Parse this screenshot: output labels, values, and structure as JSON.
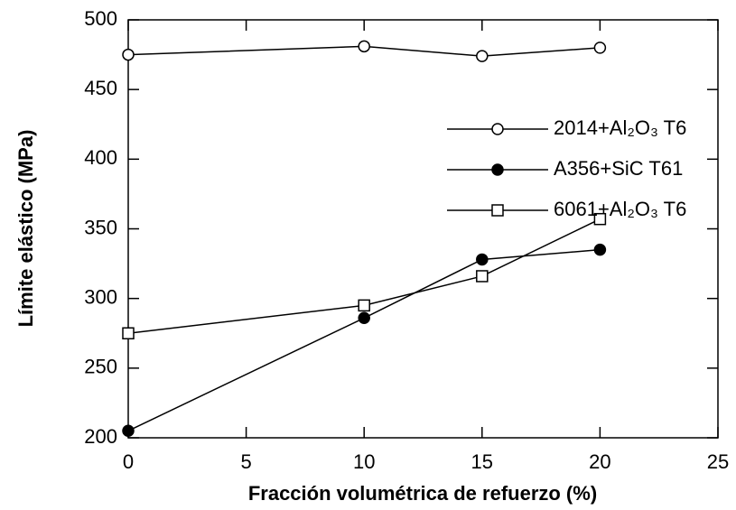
{
  "chart_data": {
    "type": "line",
    "xlabel": "Fracción volumétrica de refuerzo (%)",
    "ylabel": "Límite elástico (MPa)",
    "x": [
      0,
      10,
      15,
      20
    ],
    "series": [
      {
        "name": "2014+Al₂O₃ T6",
        "color": "#000000",
        "marker": "circle-open",
        "values": [
          475,
          481,
          474,
          480
        ]
      },
      {
        "name": "A356+SiC T61",
        "color": "#000000",
        "marker": "circle",
        "values": [
          205,
          286,
          328,
          335
        ]
      },
      {
        "name": "6061+Al₂O₃ T6",
        "color": "#000000",
        "marker": "square-open",
        "values": [
          275,
          295,
          316,
          357
        ]
      }
    ],
    "xlim": [
      0,
      25
    ],
    "xticks": [
      0,
      5,
      10,
      15,
      20,
      25
    ],
    "ylim": [
      200,
      500
    ],
    "yticks": [
      200,
      250,
      300,
      350,
      400,
      450,
      500
    ],
    "grid": false,
    "legend": "upper right"
  }
}
